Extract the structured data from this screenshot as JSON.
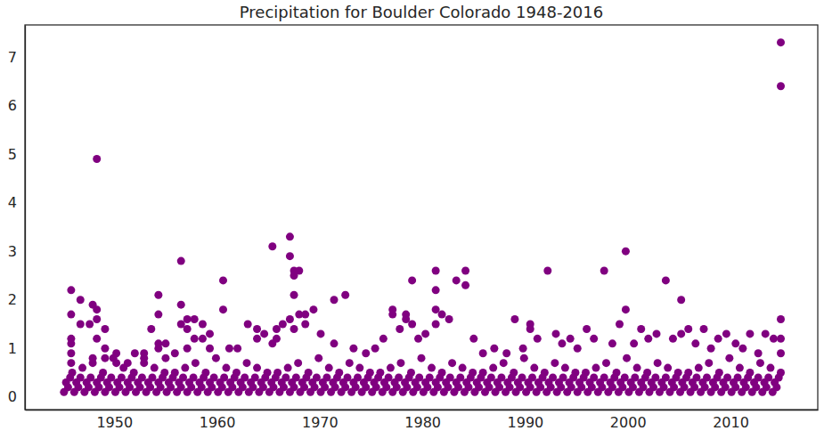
{
  "chart_data": {
    "type": "scatter",
    "title": "Precipitation for Boulder Colorado 1948-2016",
    "color": "#800080",
    "marker": "circle",
    "grid": false,
    "xlim": [
      1941.3,
      2018.5
    ],
    "xticks": [
      1950,
      1960,
      1970,
      1980,
      1990,
      2000,
      2010
    ],
    "ylim": [
      -0.26,
      7.66
    ],
    "yticks": [
      0,
      1,
      2,
      3,
      4,
      5,
      6,
      7
    ],
    "x": [
      1945.1,
      1945.3,
      1945.5,
      1945.7,
      1945.9,
      1946.1,
      1946.3,
      1946.5,
      1946.7,
      1946.9,
      1947.1,
      1947.3,
      1947.5,
      1947.7,
      1947.9,
      1948.1,
      1948.3,
      1948.5,
      1948.7,
      1948.9,
      1949.1,
      1949.3,
      1949.5,
      1949.7,
      1949.9,
      1950.1,
      1950.3,
      1950.5,
      1950.7,
      1950.9,
      1951.1,
      1951.3,
      1951.5,
      1951.7,
      1951.9,
      1952.1,
      1952.3,
      1952.5,
      1952.7,
      1952.9,
      1953.1,
      1953.3,
      1953.5,
      1953.7,
      1953.9,
      1954.1,
      1954.3,
      1954.5,
      1954.7,
      1954.9,
      1955.1,
      1955.3,
      1955.5,
      1955.7,
      1955.9,
      1956.1,
      1956.3,
      1956.5,
      1956.7,
      1956.9,
      1957.1,
      1957.3,
      1957.5,
      1957.7,
      1957.9,
      1958.1,
      1958.3,
      1958.5,
      1958.7,
      1958.9,
      1959.1,
      1959.3,
      1959.5,
      1959.7,
      1959.9,
      1960.1,
      1960.3,
      1960.5,
      1960.7,
      1960.9,
      1961.1,
      1961.3,
      1961.5,
      1961.7,
      1961.9,
      1962.1,
      1962.3,
      1962.5,
      1962.7,
      1962.9,
      1963.1,
      1963.3,
      1963.5,
      1963.7,
      1963.9,
      1964.1,
      1964.3,
      1964.5,
      1964.7,
      1964.9,
      1965.1,
      1965.3,
      1965.5,
      1965.7,
      1965.9,
      1966.1,
      1966.3,
      1966.5,
      1966.7,
      1966.9,
      1967.1,
      1967.3,
      1967.5,
      1967.7,
      1967.9,
      1968.1,
      1968.3,
      1968.5,
      1968.7,
      1968.9,
      1969.1,
      1969.3,
      1969.5,
      1969.7,
      1969.9,
      1970.1,
      1970.3,
      1970.5,
      1970.7,
      1970.9,
      1971.1,
      1971.3,
      1971.5,
      1971.7,
      1971.9,
      1972.1,
      1972.3,
      1972.5,
      1972.7,
      1972.9,
      1973.1,
      1973.3,
      1973.5,
      1973.7,
      1973.9,
      1974.1,
      1974.3,
      1974.5,
      1974.7,
      1974.9,
      1975.1,
      1975.3,
      1975.5,
      1975.7,
      1975.9,
      1976.1,
      1976.3,
      1976.5,
      1976.7,
      1976.9,
      1977.1,
      1977.3,
      1977.5,
      1977.7,
      1977.9,
      1978.1,
      1978.3,
      1978.5,
      1978.7,
      1978.9,
      1979.1,
      1979.3,
      1979.5,
      1979.7,
      1979.9,
      1980.1,
      1980.3,
      1980.5,
      1980.7,
      1980.9,
      1981.1,
      1981.3,
      1981.5,
      1981.7,
      1981.9,
      1982.1,
      1982.3,
      1982.5,
      1982.7,
      1982.9,
      1983.1,
      1983.3,
      1983.5,
      1983.7,
      1983.9,
      1984.1,
      1984.3,
      1984.5,
      1984.7,
      1984.9,
      1985.1,
      1985.3,
      1985.5,
      1985.7,
      1985.9,
      1986.1,
      1986.3,
      1986.5,
      1986.7,
      1986.9,
      1987.1,
      1987.3,
      1987.5,
      1987.7,
      1987.9,
      1988.1,
      1988.3,
      1988.5,
      1988.7,
      1988.9,
      1989.1,
      1989.3,
      1989.5,
      1989.7,
      1989.9,
      1990.1,
      1990.3,
      1990.5,
      1990.7,
      1990.9,
      1991.1,
      1991.3,
      1991.5,
      1991.7,
      1991.9,
      1992.1,
      1992.3,
      1992.5,
      1992.7,
      1992.9,
      1993.1,
      1993.3,
      1993.5,
      1993.7,
      1993.9,
      1994.1,
      1994.3,
      1994.5,
      1994.7,
      1994.9,
      1995.1,
      1995.3,
      1995.5,
      1995.7,
      1995.9,
      1996.1,
      1996.3,
      1996.5,
      1996.7,
      1996.9,
      1997.1,
      1997.3,
      1997.5,
      1997.7,
      1997.9,
      1998.1,
      1998.3,
      1998.5,
      1998.7,
      1998.9,
      1999.1,
      1999.3,
      1999.5,
      1999.7,
      1999.9,
      2000.1,
      2000.3,
      2000.5,
      2000.7,
      2000.9,
      2001.1,
      2001.3,
      2001.5,
      2001.7,
      2001.9,
      2002.1,
      2002.3,
      2002.5,
      2002.7,
      2002.9,
      2003.1,
      2003.3,
      2003.5,
      2003.7,
      2003.9,
      2004.1,
      2004.3,
      2004.5,
      2004.7,
      2004.9,
      2005.1,
      2005.3,
      2005.5,
      2005.7,
      2005.9,
      2006.1,
      2006.3,
      2006.5,
      2006.7,
      2006.9,
      2007.1,
      2007.3,
      2007.5,
      2007.7,
      2007.9,
      2008.1,
      2008.3,
      2008.5,
      2008.7,
      2008.9,
      2009.1,
      2009.3,
      2009.5,
      2009.7,
      2009.9,
      2010.1,
      2010.3,
      2010.5,
      2010.7,
      2010.9,
      2011.1,
      2011.3,
      2011.5,
      2011.7,
      2011.9,
      2012.1,
      2012.3,
      2012.5,
      2012.7,
      2012.9,
      2013.1,
      2013.3,
      2013.5,
      2013.7,
      2013.9,
      2014.1,
      2014.3,
      2014.5,
      2014.7,
      2014.9,
      1945.8,
      1945.8,
      1945.8,
      1945.8,
      1945.8,
      1945.8,
      1946.7,
      1946.7,
      1947.6,
      1947.9,
      1947.9,
      1948.3,
      1948.3,
      1948.3,
      1948.3,
      1949.1,
      1949.1,
      1949.1,
      1950.2,
      1950.2,
      1951.3,
      1952.0,
      1952.9,
      1952.9,
      1953.6,
      1954.3,
      1954.3,
      1954.3,
      1954.3,
      1955.0,
      1955.0,
      1955.9,
      1956.5,
      1956.5,
      1956.5,
      1957.1,
      1957.1,
      1957.1,
      1957.8,
      1957.8,
      1958.6,
      1958.6,
      1959.3,
      1959.3,
      1960.6,
      1960.6,
      1961.2,
      1962.0,
      1963.0,
      1963.9,
      1963.9,
      1964.6,
      1965.4,
      1965.4,
      1965.8,
      1965.8,
      1966.4,
      1967.1,
      1967.1,
      1967.1,
      1967.5,
      1967.5,
      1967.5,
      1967.5,
      1968.0,
      1968.0,
      1968.6,
      1968.6,
      1969.4,
      1970.1,
      1971.4,
      1971.4,
      1972.5,
      1973.3,
      1974.5,
      1975.4,
      1976.2,
      1977.1,
      1977.1,
      1977.8,
      1978.4,
      1978.4,
      1979.0,
      1979.0,
      1979.6,
      1980.3,
      1981.3,
      1981.3,
      1981.3,
      1981.3,
      1981.9,
      1982.6,
      1983.3,
      1984.2,
      1984.2,
      1985.0,
      1985.9,
      1987.0,
      1988.2,
      1989.0,
      1989.8,
      1990.5,
      1990.5,
      1991.2,
      1992.2,
      1993.0,
      1993.6,
      1994.4,
      1995.1,
      1996.0,
      1996.7,
      1997.7,
      1998.5,
      1999.2,
      1999.8,
      1999.8,
      2000.6,
      2001.3,
      2002.0,
      2002.8,
      2003.7,
      2004.4,
      2005.2,
      2005.2,
      2005.9,
      2006.6,
      2007.4,
      2008.1,
      2008.8,
      2009.6,
      2010.5,
      2011.2,
      2011.9,
      2012.7,
      2013.4,
      2014.2,
      2014.9,
      2014.9,
      2014.9,
      2014.9,
      2014.9
    ],
    "values": [
      0.1,
      0.3,
      0.2,
      0.4,
      0.5,
      0.1,
      0.3,
      0.2,
      0.4,
      0.6,
      0.1,
      0.3,
      0.2,
      0.4,
      0.7,
      0.1,
      0.3,
      0.2,
      0.4,
      0.5,
      0.1,
      0.3,
      0.2,
      0.4,
      0.8,
      0.1,
      0.3,
      0.2,
      0.4,
      0.6,
      0.1,
      0.3,
      0.2,
      0.4,
      0.5,
      0.1,
      0.3,
      0.2,
      0.4,
      0.7,
      0.1,
      0.3,
      0.2,
      0.4,
      0.6,
      0.1,
      0.3,
      0.2,
      0.4,
      0.5,
      0.1,
      0.3,
      0.2,
      0.4,
      0.5,
      0.1,
      0.3,
      0.2,
      0.4,
      0.6,
      0.1,
      0.3,
      0.2,
      0.4,
      0.7,
      0.1,
      0.3,
      0.2,
      0.4,
      0.5,
      0.1,
      0.3,
      0.2,
      0.4,
      0.8,
      0.1,
      0.3,
      0.2,
      0.4,
      0.6,
      0.1,
      0.3,
      0.2,
      0.4,
      0.5,
      0.1,
      0.3,
      0.2,
      0.4,
      0.7,
      0.1,
      0.3,
      0.2,
      0.4,
      0.6,
      0.1,
      0.3,
      0.2,
      0.4,
      0.5,
      0.1,
      0.3,
      0.2,
      0.4,
      0.5,
      0.1,
      0.3,
      0.2,
      0.4,
      0.6,
      0.1,
      0.3,
      0.2,
      0.4,
      0.7,
      0.1,
      0.3,
      0.2,
      0.4,
      0.5,
      0.1,
      0.3,
      0.2,
      0.4,
      0.8,
      0.1,
      0.3,
      0.2,
      0.4,
      0.6,
      0.1,
      0.3,
      0.2,
      0.4,
      0.5,
      0.1,
      0.3,
      0.2,
      0.4,
      0.7,
      0.1,
      0.3,
      0.2,
      0.4,
      0.6,
      0.1,
      0.3,
      0.2,
      0.4,
      0.5,
      0.1,
      0.3,
      0.2,
      0.4,
      0.5,
      0.1,
      0.3,
      0.2,
      0.4,
      0.6,
      0.1,
      0.3,
      0.2,
      0.4,
      0.7,
      0.1,
      0.3,
      0.2,
      0.4,
      0.5,
      0.1,
      0.3,
      0.2,
      0.4,
      0.8,
      0.1,
      0.3,
      0.2,
      0.4,
      0.6,
      0.1,
      0.3,
      0.2,
      0.4,
      0.5,
      0.1,
      0.3,
      0.2,
      0.4,
      0.7,
      0.1,
      0.3,
      0.2,
      0.4,
      0.6,
      0.1,
      0.3,
      0.2,
      0.4,
      0.5,
      0.1,
      0.3,
      0.2,
      0.4,
      0.5,
      0.1,
      0.3,
      0.2,
      0.4,
      0.6,
      0.1,
      0.3,
      0.2,
      0.4,
      0.7,
      0.1,
      0.3,
      0.2,
      0.4,
      0.5,
      0.1,
      0.3,
      0.2,
      0.4,
      0.8,
      0.1,
      0.3,
      0.2,
      0.4,
      0.6,
      0.1,
      0.3,
      0.2,
      0.4,
      0.5,
      0.1,
      0.3,
      0.2,
      0.4,
      0.7,
      0.1,
      0.3,
      0.2,
      0.4,
      0.6,
      0.1,
      0.3,
      0.2,
      0.4,
      0.5,
      0.1,
      0.3,
      0.2,
      0.4,
      0.5,
      0.1,
      0.3,
      0.2,
      0.4,
      0.6,
      0.1,
      0.3,
      0.2,
      0.4,
      0.7,
      0.1,
      0.3,
      0.2,
      0.4,
      0.5,
      0.1,
      0.3,
      0.2,
      0.4,
      0.8,
      0.1,
      0.3,
      0.2,
      0.4,
      0.6,
      0.1,
      0.3,
      0.2,
      0.4,
      0.5,
      0.1,
      0.3,
      0.2,
      0.4,
      0.7,
      0.1,
      0.3,
      0.2,
      0.4,
      0.6,
      0.1,
      0.3,
      0.2,
      0.4,
      0.5,
      0.1,
      0.3,
      0.2,
      0.4,
      0.5,
      0.1,
      0.3,
      0.2,
      0.4,
      0.6,
      0.1,
      0.3,
      0.2,
      0.4,
      0.7,
      0.1,
      0.3,
      0.2,
      0.4,
      0.5,
      0.1,
      0.3,
      0.2,
      0.4,
      0.8,
      0.1,
      0.3,
      0.2,
      0.4,
      0.6,
      0.1,
      0.3,
      0.2,
      0.4,
      0.5,
      0.1,
      0.3,
      0.2,
      0.4,
      0.7,
      0.1,
      0.3,
      0.2,
      0.4,
      0.6,
      0.1,
      0.3,
      0.2,
      0.4,
      0.5,
      2.2,
      1.7,
      1.2,
      1.1,
      0.9,
      0.7,
      2.0,
      1.5,
      1.5,
      1.9,
      0.8,
      4.9,
      1.8,
      1.6,
      1.2,
      1.4,
      1.0,
      0.8,
      0.9,
      0.7,
      0.7,
      0.9,
      0.9,
      0.8,
      1.4,
      2.1,
      1.7,
      1.1,
      1.0,
      1.1,
      0.8,
      0.9,
      2.8,
      1.9,
      1.5,
      1.6,
      1.4,
      1.0,
      1.6,
      1.2,
      1.5,
      1.2,
      1.3,
      1.0,
      2.4,
      1.8,
      1.0,
      1.0,
      1.5,
      1.4,
      1.2,
      1.3,
      3.1,
      1.1,
      1.4,
      1.2,
      1.5,
      3.3,
      2.9,
      1.6,
      2.6,
      2.5,
      2.1,
      1.4,
      2.6,
      1.7,
      1.7,
      1.5,
      1.8,
      1.3,
      2.0,
      1.1,
      2.1,
      1.0,
      0.9,
      1.0,
      1.2,
      1.8,
      1.7,
      1.4,
      1.7,
      1.6,
      2.4,
      1.5,
      1.2,
      1.3,
      2.6,
      2.2,
      1.8,
      1.5,
      1.7,
      1.6,
      2.4,
      2.6,
      2.3,
      1.2,
      0.9,
      1.0,
      0.9,
      1.6,
      1.0,
      1.5,
      1.4,
      1.2,
      2.6,
      1.3,
      1.1,
      1.2,
      1.0,
      1.4,
      1.2,
      2.6,
      1.1,
      1.5,
      3.0,
      1.8,
      1.1,
      1.4,
      1.2,
      1.3,
      2.4,
      1.2,
      2.0,
      1.3,
      1.4,
      1.1,
      1.4,
      1.0,
      1.2,
      1.3,
      1.1,
      1.0,
      1.3,
      0.9,
      1.3,
      1.2,
      7.3,
      6.4,
      1.6,
      1.2,
      0.9
    ]
  }
}
